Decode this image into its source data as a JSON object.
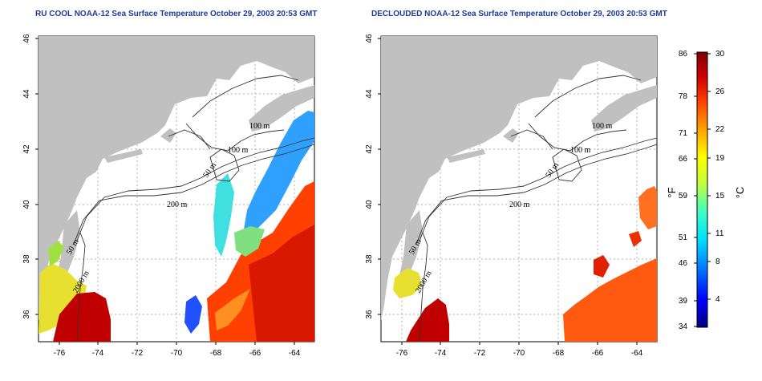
{
  "panels": [
    {
      "title": "RU COOL NOAA-12 Sea Surface Temperature October 29, 2003 20:53 GMT",
      "longitude_ticks": [
        "-76",
        "-74",
        "-72",
        "-70",
        "-68",
        "-66",
        "-64"
      ],
      "latitude_ticks": [
        "46",
        "44",
        "42",
        "40",
        "38",
        "36"
      ],
      "contour_labels": [
        "100 m",
        "100 m",
        "50 m",
        "200 m",
        "50 m",
        "2000 m"
      ]
    },
    {
      "title": "DECLOUDED NOAA-12 Sea Surface Temperature October 29, 2003 20:53 GMT",
      "longitude_ticks": [
        "-76",
        "-74",
        "-72",
        "-70",
        "-68",
        "-66",
        "-64"
      ],
      "latitude_ticks": [
        "46",
        "44",
        "42",
        "40",
        "38",
        "36"
      ],
      "contour_labels": [
        "100 m",
        "100 m",
        "50 m",
        "200 m",
        "50 m",
        "2000 m"
      ]
    }
  ],
  "colorbar": {
    "fahrenheit_ticks": [
      "86",
      "78",
      "71",
      "66",
      "59",
      "51",
      "46",
      "39",
      "34"
    ],
    "celsius_ticks": [
      "30",
      "26",
      "22",
      "19",
      "15",
      "11",
      "8",
      "4"
    ],
    "fahrenheit_unit": "°F",
    "celsius_unit": "°C",
    "colors": [
      "#000080",
      "#0000ff",
      "#0080ff",
      "#00e0ff",
      "#40ffc0",
      "#c0ff40",
      "#ffff00",
      "#ffa000",
      "#ff4000",
      "#d00000",
      "#800000"
    ]
  },
  "colors": {
    "land": "#c0c0c0",
    "grid": "#b0b0b0",
    "title": "#1c3a9c"
  }
}
